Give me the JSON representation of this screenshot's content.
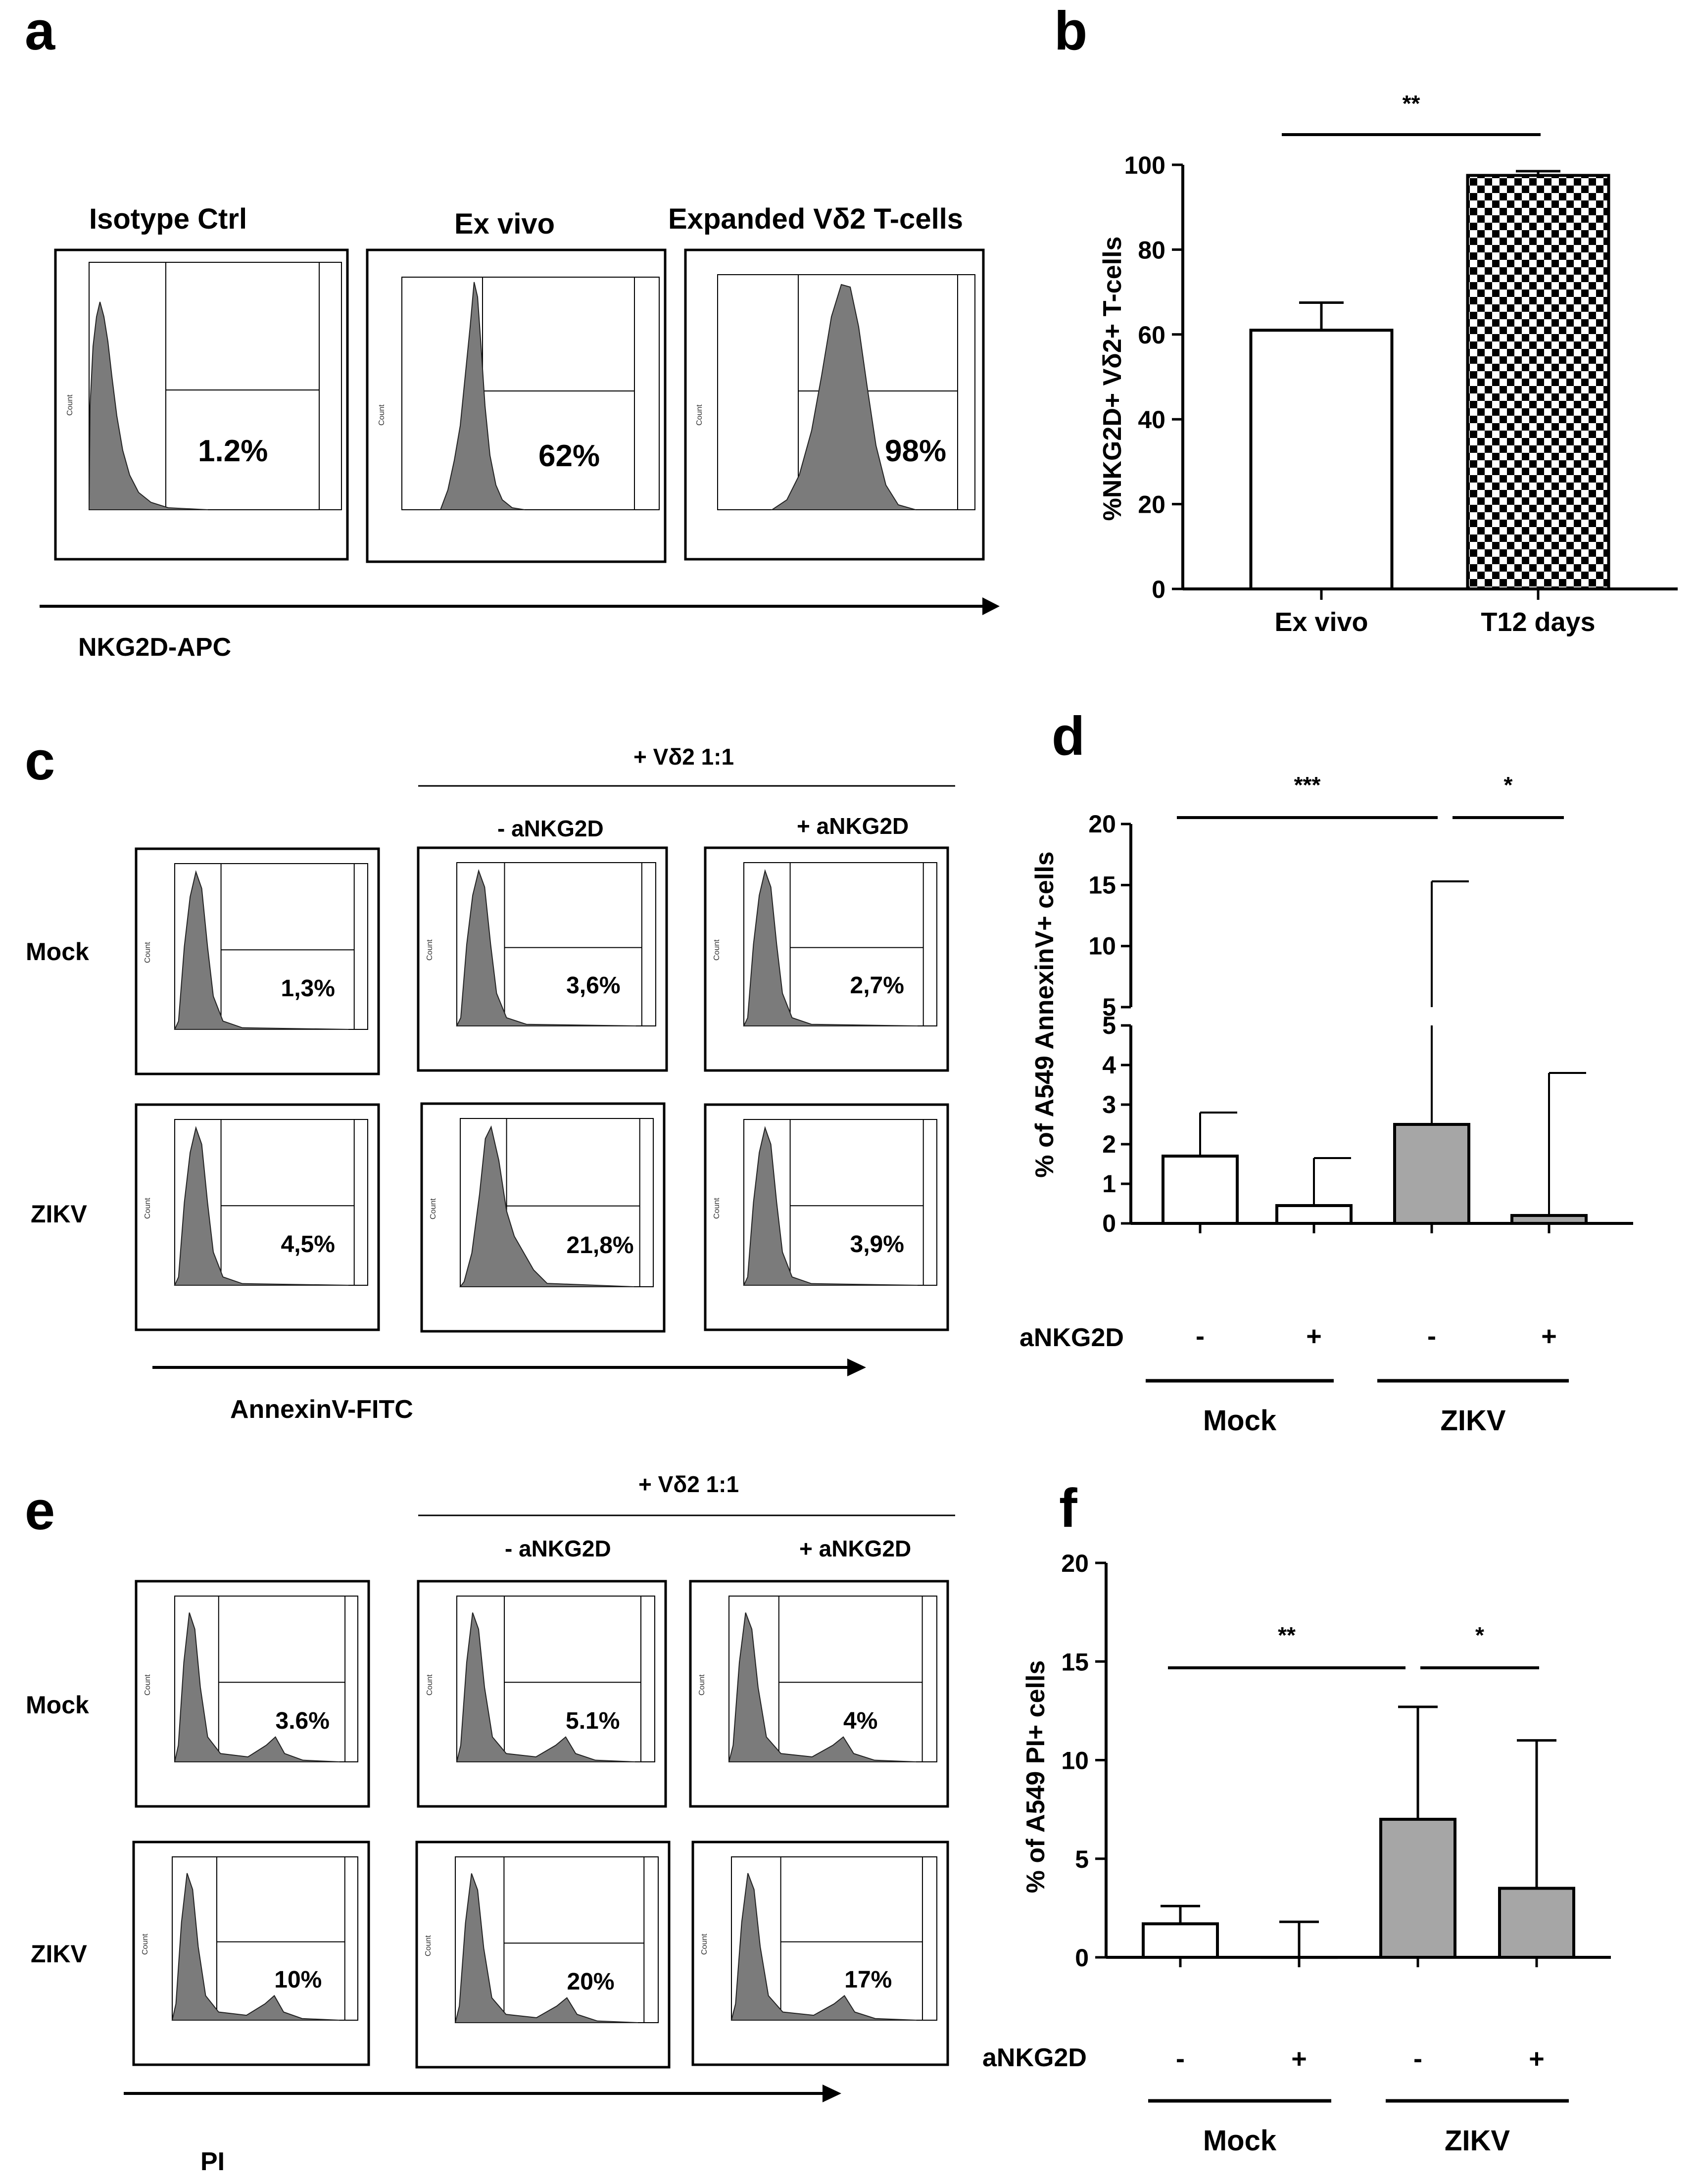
{
  "panels": {
    "a": {
      "letter": "a",
      "histograms": [
        {
          "title": "Isotype Ctrl",
          "value": "1.2%"
        },
        {
          "title": "Ex vivo",
          "value": "62%"
        },
        {
          "title": "Expanded Vδ2 T-cells",
          "value": "98%"
        }
      ],
      "x_axis_label": "NKG2D-APC",
      "hist_ylabel": "Count"
    },
    "b": {
      "letter": "b",
      "chart_data": {
        "type": "bar",
        "categories": [
          "Ex vivo",
          "T12 days"
        ],
        "values": [
          61,
          97.5
        ],
        "errors": [
          6.5,
          1
        ],
        "fills": [
          "white",
          "checker"
        ],
        "ylabel": "%NKG2D+ Vδ2+ T-cells",
        "ylim": [
          0,
          100
        ],
        "yticks": [
          0,
          20,
          40,
          60,
          80,
          100
        ],
        "significance": [
          {
            "pair": [
              0,
              1
            ],
            "label": "**"
          }
        ]
      }
    },
    "c": {
      "letter": "c",
      "group_header": "+ Vδ2 1:1",
      "col_headers": [
        "- aNKG2D",
        "+ aNKG2D"
      ],
      "rows": [
        {
          "label": "Mock",
          "values": [
            "1,3%",
            "3,6%",
            "2,7%"
          ]
        },
        {
          "label": "ZIKV",
          "values": [
            "4,5%",
            "21,8%",
            "3,9%"
          ]
        }
      ],
      "x_axis_label": "AnnexinV-FITC",
      "hist_ylabel": "Count"
    },
    "d": {
      "letter": "d",
      "chart_data": {
        "type": "bar",
        "categories": [
          "-",
          "+",
          "-",
          "+"
        ],
        "groups": [
          {
            "label": "Mock",
            "members": [
              0,
              1
            ]
          },
          {
            "label": "ZIKV",
            "members": [
              2,
              3
            ]
          }
        ],
        "treatment_label": "aNKG2D",
        "values": [
          1.7,
          0.45,
          2.5,
          0.2
        ],
        "errors": [
          1.1,
          1.2,
          12.8,
          3.6
        ],
        "colors": [
          "#ffffff",
          "#ffffff",
          "#a6a6a6",
          "#a6a6a6"
        ],
        "ylabel": "% of A549 AnnexinV+ cells",
        "ylim": [
          0,
          20
        ],
        "axis_break": [
          5,
          5
        ],
        "yticks_lower": [
          0,
          1,
          2,
          3,
          4,
          5
        ],
        "yticks_upper": [
          5,
          10,
          15,
          20
        ],
        "significance": [
          {
            "pair": [
              0,
              2
            ],
            "label": "***"
          },
          {
            "pair": [
              2,
              3
            ],
            "label": "*"
          }
        ]
      }
    },
    "e": {
      "letter": "e",
      "group_header": "+ Vδ2 1:1",
      "col_headers": [
        "- aNKG2D",
        "+ aNKG2D"
      ],
      "rows": [
        {
          "label": "Mock",
          "values": [
            "3.6%",
            "5.1%",
            "4%"
          ]
        },
        {
          "label": "ZIKV",
          "values": [
            "10%",
            "20%",
            "17%"
          ]
        }
      ],
      "x_axis_label": "PI",
      "hist_ylabel": "Count"
    },
    "f": {
      "letter": "f",
      "chart_data": {
        "type": "bar",
        "categories": [
          "-",
          "+",
          "-",
          "+"
        ],
        "groups": [
          {
            "label": "Mock",
            "members": [
              0,
              1
            ]
          },
          {
            "label": "ZIKV",
            "members": [
              2,
              3
            ]
          }
        ],
        "treatment_label": "aNKG2D",
        "values": [
          1.7,
          0,
          7,
          3.5
        ],
        "errors": [
          0.9,
          1.8,
          5.7,
          7.5
        ],
        "colors": [
          "#ffffff",
          "#ffffff",
          "#a6a6a6",
          "#a6a6a6"
        ],
        "ylabel": "% of A549 PI+ cells",
        "ylim": [
          0,
          20
        ],
        "yticks": [
          0,
          5,
          10,
          15,
          20
        ],
        "significance": [
          {
            "pair": [
              0,
              2
            ],
            "label": "**"
          },
          {
            "pair": [
              2,
              3
            ],
            "label": "*"
          }
        ]
      }
    }
  }
}
